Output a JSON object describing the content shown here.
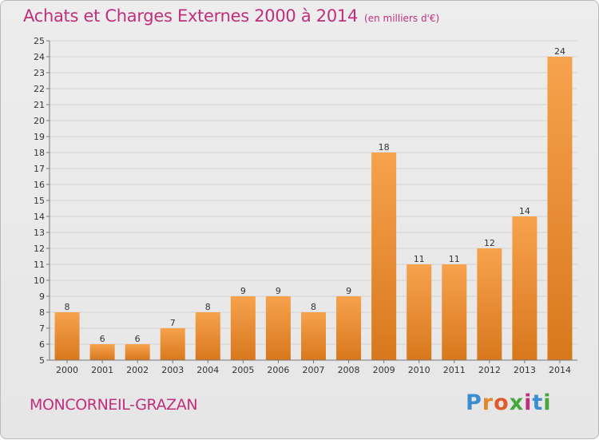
{
  "title": "Achats et Charges Externes 2000 à 2014",
  "unit": "(en milliers d'€)",
  "location": "MONCORNEIL-GRAZAN",
  "brand": "Proxiti",
  "colors": {
    "title": "#c02f7d",
    "bar_light": "#f7a24d",
    "bar_dark": "#d8781d",
    "grid": "#d3d3d3"
  },
  "chart_data": {
    "type": "bar",
    "categories": [
      "2000",
      "2001",
      "2002",
      "2003",
      "2004",
      "2005",
      "2006",
      "2007",
      "2008",
      "2009",
      "2010",
      "2011",
      "2012",
      "2013",
      "2014"
    ],
    "values": [
      8,
      6,
      6,
      7,
      8,
      9,
      9,
      8,
      9,
      18,
      11,
      11,
      12,
      14,
      24
    ],
    "ylim": [
      5,
      25
    ],
    "yticks": [
      5,
      6,
      7,
      8,
      9,
      10,
      11,
      12,
      13,
      14,
      15,
      16,
      17,
      18,
      19,
      20,
      21,
      22,
      23,
      24,
      25
    ],
    "grid": true,
    "data_labels": true
  }
}
